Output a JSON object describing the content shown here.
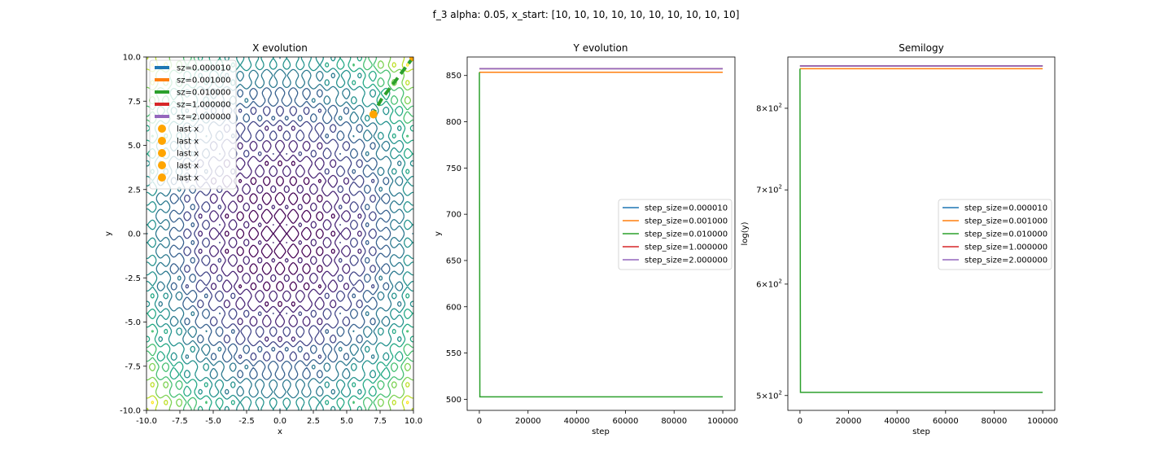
{
  "figure_title": "f_3 alpha: 0.05, x_start: [10, 10, 10, 10, 10, 10, 10, 10, 10, 10]",
  "colors": {
    "blue": "#1f77b4",
    "orange": "#ff7f0e",
    "green": "#2ca02c",
    "red": "#d62728",
    "purple": "#9467bd",
    "marker": "#ffa500"
  },
  "chart_data": [
    {
      "type": "contour",
      "title": "X evolution",
      "xlabel": "x",
      "ylabel": "y",
      "xlim": [
        -10,
        10
      ],
      "ylim": [
        -10,
        10
      ],
      "xticks": [
        "-10.0",
        "-7.5",
        "-5.0",
        "-2.5",
        "0.0",
        "2.5",
        "5.0",
        "7.5",
        "10.0"
      ],
      "yticks": [
        "-10.0",
        "-7.5",
        "-5.0",
        "-2.5",
        "0.0",
        "2.5",
        "5.0",
        "7.5",
        "10.0"
      ],
      "colormap": "viridis",
      "legend_position": "upper-left",
      "series": [
        {
          "name": "sz=0.000010",
          "color": "#1f77b4",
          "x": [
            10,
            10
          ],
          "y": [
            10,
            10
          ]
        },
        {
          "name": "sz=0.001000",
          "color": "#ff7f0e",
          "x": [
            10,
            10
          ],
          "y": [
            10,
            10
          ]
        },
        {
          "name": "sz=0.010000",
          "color": "#2ca02c",
          "x": [
            10,
            9.7,
            9,
            8.3,
            7.6,
            7.0
          ],
          "y": [
            10,
            9.7,
            9.0,
            8.3,
            7.6,
            6.8
          ]
        },
        {
          "name": "sz=1.000000",
          "color": "#d62728",
          "x": [
            10,
            10
          ],
          "y": [
            10,
            10
          ]
        },
        {
          "name": "sz=2.000000",
          "color": "#9467bd",
          "x": [
            10,
            10
          ],
          "y": [
            10,
            10
          ]
        }
      ],
      "last_points": [
        {
          "name": "last x",
          "x": 10,
          "y": 10
        },
        {
          "name": "last x",
          "x": 10,
          "y": 10
        },
        {
          "name": "last x",
          "x": 7.0,
          "y": 6.75
        },
        {
          "name": "last x",
          "x": 10,
          "y": 10
        },
        {
          "name": "last x",
          "x": 10,
          "y": 10
        }
      ]
    },
    {
      "type": "line",
      "title": "Y evolution",
      "xlabel": "step",
      "ylabel": "y",
      "xlim": [
        -5000,
        105000
      ],
      "ylim": [
        488,
        870
      ],
      "xticks": [
        0,
        20000,
        40000,
        60000,
        80000,
        100000
      ],
      "yticks": [
        500,
        550,
        600,
        650,
        700,
        750,
        800,
        850
      ],
      "legend_position": "center-right",
      "series": [
        {
          "name": "step_size=0.000010",
          "color": "#1f77b4",
          "x": [
            0,
            100000
          ],
          "y": [
            857.3,
            857.3
          ]
        },
        {
          "name": "step_size=0.001000",
          "color": "#ff7f0e",
          "x": [
            0,
            100000
          ],
          "y": [
            853.5,
            853.5
          ]
        },
        {
          "name": "step_size=0.010000",
          "color": "#2ca02c",
          "x": [
            0,
            200,
            100000
          ],
          "y": [
            853.5,
            502.6,
            502.6
          ]
        },
        {
          "name": "step_size=1.000000",
          "color": "#d62728",
          "x": [
            0,
            100000
          ],
          "y": [
            857.3,
            857.3
          ]
        },
        {
          "name": "step_size=2.000000",
          "color": "#9467bd",
          "x": [
            0,
            100000
          ],
          "y": [
            857.3,
            857.3
          ]
        }
      ]
    },
    {
      "type": "line",
      "title": "Semilogy",
      "xlabel": "step",
      "ylabel": "log(y)",
      "yscale": "log",
      "xlim": [
        -5000,
        105000
      ],
      "ylim": [
        488,
        870
      ],
      "xticks": [
        0,
        20000,
        40000,
        60000,
        80000,
        100000
      ],
      "yticks": [
        {
          "value": 500,
          "mantissa": "5",
          "exp": "2"
        },
        {
          "value": 600,
          "mantissa": "6",
          "exp": "2"
        },
        {
          "value": 700,
          "mantissa": "7",
          "exp": "2"
        },
        {
          "value": 800,
          "mantissa": "8",
          "exp": "2"
        }
      ],
      "legend_position": "center-right",
      "series": [
        {
          "name": "step_size=0.000010",
          "color": "#1f77b4",
          "x": [
            0,
            100000
          ],
          "y": [
            857.3,
            857.3
          ]
        },
        {
          "name": "step_size=0.001000",
          "color": "#ff7f0e",
          "x": [
            0,
            100000
          ],
          "y": [
            853.5,
            853.5
          ]
        },
        {
          "name": "step_size=0.010000",
          "color": "#2ca02c",
          "x": [
            0,
            200,
            100000
          ],
          "y": [
            853.5,
            502.6,
            502.6
          ]
        },
        {
          "name": "step_size=1.000000",
          "color": "#d62728",
          "x": [
            0,
            100000
          ],
          "y": [
            857.3,
            857.3
          ]
        },
        {
          "name": "step_size=2.000000",
          "color": "#9467bd",
          "x": [
            0,
            100000
          ],
          "y": [
            857.3,
            857.3
          ]
        }
      ]
    }
  ]
}
